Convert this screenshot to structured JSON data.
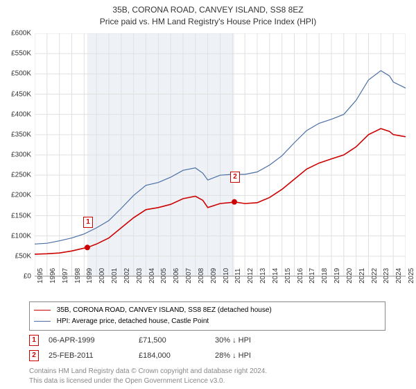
{
  "title_line1": "35B, CORONA ROAD, CANVEY ISLAND, SS8 8EZ",
  "title_line2": "Price paid vs. HM Land Registry's House Price Index (HPI)",
  "chart": {
    "type": "line",
    "x_years": [
      1995,
      1996,
      1997,
      1998,
      1999,
      2000,
      2001,
      2002,
      2003,
      2004,
      2005,
      2006,
      2007,
      2008,
      2009,
      2010,
      2011,
      2012,
      2013,
      2014,
      2015,
      2016,
      2017,
      2018,
      2019,
      2020,
      2021,
      2022,
      2023,
      2024,
      2025
    ],
    "ylim": [
      0,
      600000
    ],
    "ytick_step": 50000,
    "ytick_labels": [
      "£0",
      "£50K",
      "£100K",
      "£150K",
      "£200K",
      "£250K",
      "£300K",
      "£350K",
      "£400K",
      "£450K",
      "£500K",
      "£550K",
      "£600K"
    ],
    "grid_color": "#e0e0e0",
    "background_color": "#ffffff",
    "shaded_band_color": "#eef2f7",
    "shaded_from_year": 1999.26,
    "shaded_to_year": 2011.15,
    "series": [
      {
        "name": "property",
        "color": "#cc0000",
        "line_width": 1.6,
        "values": [
          [
            1995,
            55000
          ],
          [
            1996,
            56000
          ],
          [
            1997,
            58000
          ],
          [
            1998,
            63000
          ],
          [
            1999,
            70000
          ],
          [
            1999.26,
            71500
          ],
          [
            2000,
            80000
          ],
          [
            2001,
            95000
          ],
          [
            2002,
            120000
          ],
          [
            2003,
            145000
          ],
          [
            2004,
            165000
          ],
          [
            2005,
            170000
          ],
          [
            2006,
            178000
          ],
          [
            2007,
            192000
          ],
          [
            2008,
            198000
          ],
          [
            2008.6,
            188000
          ],
          [
            2009,
            170000
          ],
          [
            2010,
            180000
          ],
          [
            2011,
            183000
          ],
          [
            2011.15,
            184000
          ],
          [
            2012,
            180000
          ],
          [
            2013,
            182000
          ],
          [
            2014,
            195000
          ],
          [
            2015,
            215000
          ],
          [
            2016,
            240000
          ],
          [
            2017,
            265000
          ],
          [
            2018,
            280000
          ],
          [
            2019,
            290000
          ],
          [
            2020,
            300000
          ],
          [
            2021,
            320000
          ],
          [
            2022,
            350000
          ],
          [
            2023,
            365000
          ],
          [
            2023.7,
            358000
          ],
          [
            2024,
            350000
          ],
          [
            2025,
            345000
          ]
        ]
      },
      {
        "name": "hpi",
        "color": "#4a6fa5",
        "line_width": 1.2,
        "values": [
          [
            1995,
            80000
          ],
          [
            1996,
            82000
          ],
          [
            1997,
            88000
          ],
          [
            1998,
            95000
          ],
          [
            1999,
            105000
          ],
          [
            2000,
            120000
          ],
          [
            2001,
            138000
          ],
          [
            2002,
            168000
          ],
          [
            2003,
            200000
          ],
          [
            2004,
            225000
          ],
          [
            2005,
            232000
          ],
          [
            2006,
            245000
          ],
          [
            2007,
            262000
          ],
          [
            2008,
            268000
          ],
          [
            2008.6,
            255000
          ],
          [
            2009,
            238000
          ],
          [
            2010,
            250000
          ],
          [
            2011,
            252000
          ],
          [
            2012,
            252000
          ],
          [
            2013,
            258000
          ],
          [
            2014,
            275000
          ],
          [
            2015,
            298000
          ],
          [
            2016,
            330000
          ],
          [
            2017,
            360000
          ],
          [
            2018,
            378000
          ],
          [
            2019,
            388000
          ],
          [
            2020,
            400000
          ],
          [
            2021,
            435000
          ],
          [
            2022,
            485000
          ],
          [
            2023,
            508000
          ],
          [
            2023.7,
            495000
          ],
          [
            2024,
            480000
          ],
          [
            2025,
            465000
          ]
        ]
      }
    ],
    "markers": [
      {
        "n": "1",
        "year": 1999.26,
        "price": 71500
      },
      {
        "n": "2",
        "year": 2011.15,
        "price": 184000
      }
    ]
  },
  "legend": {
    "items": [
      {
        "color": "#cc0000",
        "width": 1.8,
        "label": "35B, CORONA ROAD, CANVEY ISLAND, SS8 8EZ (detached house)"
      },
      {
        "color": "#4a6fa5",
        "width": 1.2,
        "label": "HPI: Average price, detached house, Castle Point"
      }
    ]
  },
  "sales": [
    {
      "n": "1",
      "date": "06-APR-1999",
      "price": "£71,500",
      "delta": "30% ↓ HPI"
    },
    {
      "n": "2",
      "date": "25-FEB-2011",
      "price": "£184,000",
      "delta": "28% ↓ HPI"
    }
  ],
  "footer_line1": "Contains HM Land Registry data © Crown copyright and database right 2024.",
  "footer_line2": "This data is licensed under the Open Government Licence v3.0."
}
